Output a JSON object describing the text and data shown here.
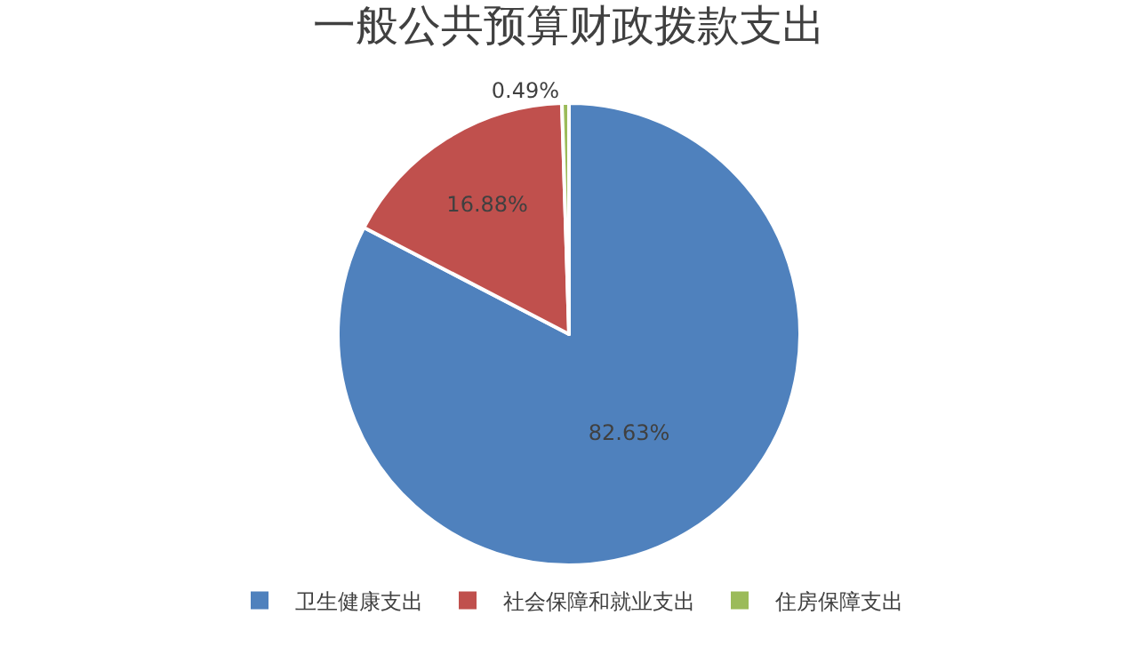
{
  "chart_data": {
    "type": "pie",
    "title": "一般公共预算财政拨款支出",
    "categories": [
      "卫生健康支出",
      "社会保障和就业支出",
      "住房保障支出"
    ],
    "values": [
      82.63,
      16.88,
      0.49
    ],
    "colors": [
      "#4f81bd",
      "#c0504d",
      "#9bbb59"
    ],
    "value_labels": [
      "82.63%",
      "16.88%",
      "0.49%"
    ],
    "legend": "bottom"
  }
}
